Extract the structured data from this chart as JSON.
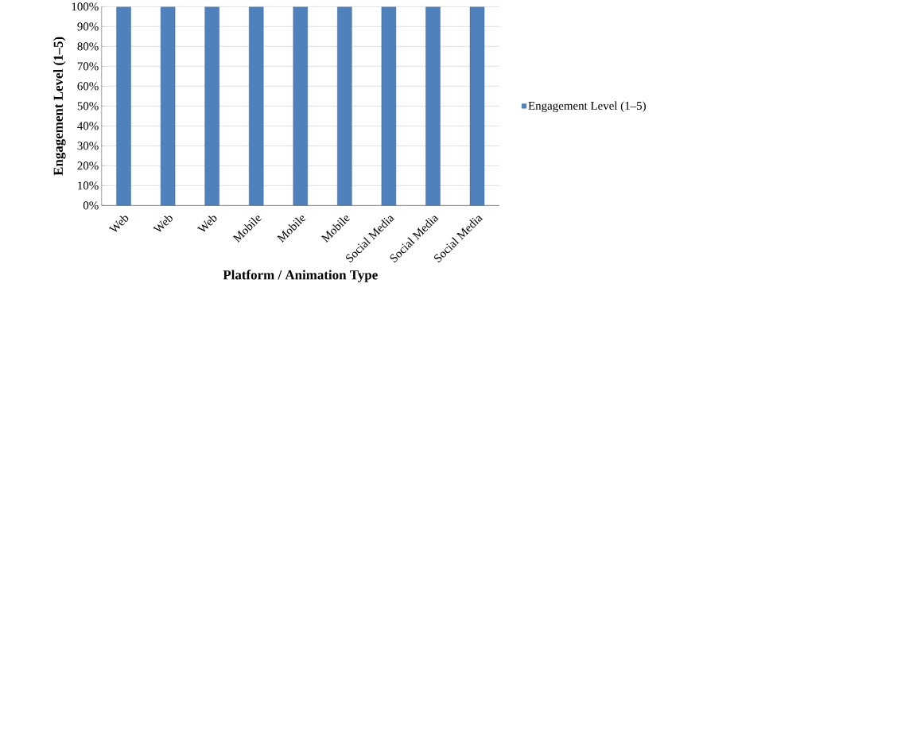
{
  "chart_data": {
    "type": "bar",
    "xlabel": "Platform / Animation Type",
    "ylabel": "Engagement Level (1–5)",
    "categories": [
      "Web",
      "Web",
      "Web",
      "Mobile",
      "Mobile",
      "Mobile",
      "Social Media",
      "Social Media",
      "Social Media"
    ],
    "series": [
      {
        "name": "Engagement Level (1–5)",
        "color": "#4f81bd",
        "values": [
          100,
          100,
          100,
          100,
          100,
          100,
          100,
          100,
          100
        ]
      }
    ],
    "ylim": [
      0,
      100
    ],
    "yticks": [
      {
        "value": 0,
        "label": "0%"
      },
      {
        "value": 10,
        "label": "10%"
      },
      {
        "value": 20,
        "label": "20%"
      },
      {
        "value": 30,
        "label": "30%"
      },
      {
        "value": 40,
        "label": "40%"
      },
      {
        "value": 50,
        "label": "50%"
      },
      {
        "value": 60,
        "label": "60%"
      },
      {
        "value": 70,
        "label": "70%"
      },
      {
        "value": 80,
        "label": "80%"
      },
      {
        "value": 90,
        "label": "90%"
      },
      {
        "value": 100,
        "label": "100%"
      }
    ],
    "grid": "y",
    "legend": "right"
  }
}
